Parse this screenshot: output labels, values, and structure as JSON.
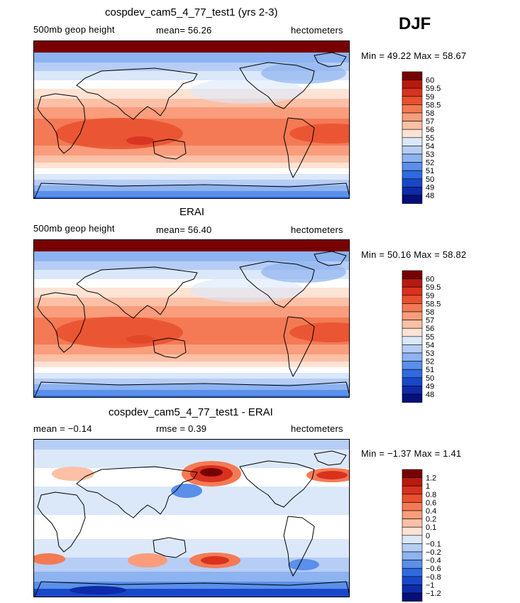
{
  "season": "DJF",
  "panels": [
    {
      "title": "cospdev_cam5_4_77_test1 (yrs 2-3)",
      "left_label": "500mb geop height",
      "center_label": "mean=  56.26",
      "units": "hectometers",
      "minmax": "Min =  49.22 Max =  58.67",
      "kind": "model",
      "colorbar": [
        "60",
        "59.5",
        "59",
        "58.5",
        "58",
        "57",
        "56",
        "55",
        "54",
        "53",
        "52",
        "51",
        "50",
        "49",
        "48"
      ]
    },
    {
      "title": "ERAI",
      "left_label": "500mb geop height",
      "center_label": "mean=  56.40",
      "units": "hectometers",
      "minmax": "Min =  50.16 Max =  58.82",
      "kind": "obs",
      "colorbar": [
        "60",
        "59.5",
        "59",
        "58.5",
        "58",
        "57",
        "56",
        "55",
        "54",
        "53",
        "52",
        "51",
        "50",
        "49",
        "48"
      ]
    },
    {
      "title": "cospdev_cam5_4_77_test1 - ERAI",
      "left_label": "mean =  −0.14",
      "center_label": "rmse =    0.39",
      "units": "hectometers",
      "minmax": "Min =  −1.37 Max =   1.41",
      "kind": "diff",
      "colorbar": [
        "1.2",
        "1",
        "0.8",
        "0.6",
        "0.4",
        "0.2",
        "0.1",
        "0",
        "−0.1",
        "−0.2",
        "−0.4",
        "−0.6",
        "−0.8",
        "−1",
        "−1.2"
      ]
    }
  ],
  "colors": [
    "#780000",
    "#b81a0d",
    "#d8321f",
    "#e8502e",
    "#f47a55",
    "#f99d7c",
    "#fcc0a6",
    "#fde3d4",
    "#ffffff",
    "#dbe8fa",
    "#b6cdf5",
    "#8db3f0",
    "#5a8fea",
    "#2f6ae0",
    "#1847c9",
    "#0d2aa8",
    "#050f7a"
  ],
  "chart_data": [
    {
      "type": "heatmap",
      "title": "cospdev_cam5_4_77_test1 (yrs 2-3)",
      "variable": "500mb geop height",
      "units": "hectometers",
      "mean": 56.26,
      "min": 49.22,
      "max": 58.67,
      "levels": [
        48,
        49,
        50,
        51,
        52,
        53,
        54,
        55,
        56,
        57,
        58,
        58.5,
        59,
        59.5,
        60
      ]
    },
    {
      "type": "heatmap",
      "title": "ERAI",
      "variable": "500mb geop height",
      "units": "hectometers",
      "mean": 56.4,
      "min": 50.16,
      "max": 58.82,
      "levels": [
        48,
        49,
        50,
        51,
        52,
        53,
        54,
        55,
        56,
        57,
        58,
        58.5,
        59,
        59.5,
        60
      ]
    },
    {
      "type": "heatmap",
      "title": "cospdev_cam5_4_77_test1 - ERAI",
      "units": "hectometers",
      "mean": -0.14,
      "rmse": 0.39,
      "min": -1.37,
      "max": 1.41,
      "levels": [
        -1.2,
        -1,
        -0.8,
        -0.6,
        -0.4,
        -0.2,
        -0.1,
        0,
        0.1,
        0.2,
        0.4,
        0.6,
        0.8,
        1,
        1.2
      ]
    }
  ]
}
